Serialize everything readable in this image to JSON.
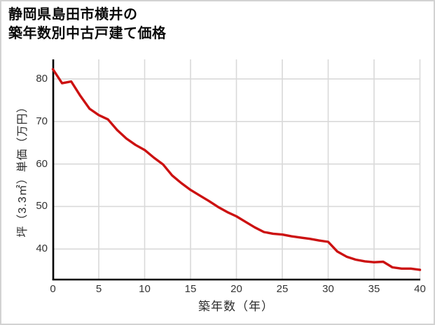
{
  "title": {
    "line1": "静岡県島田市横井の",
    "line2": "築年数別中古戸建て価格"
  },
  "chart_data": {
    "type": "line",
    "title": "静岡県島田市横井の築年数別中古戸建て価格",
    "xlabel": "築年数（年）",
    "ylabel": "坪（3.3㎡）単価（万円）",
    "x": [
      0,
      1,
      2,
      3,
      4,
      5,
      6,
      7,
      8,
      9,
      10,
      11,
      12,
      13,
      14,
      15,
      16,
      17,
      18,
      19,
      20,
      21,
      22,
      23,
      24,
      25,
      26,
      27,
      28,
      29,
      30,
      31,
      32,
      33,
      34,
      35,
      36,
      37,
      38,
      39,
      40
    ],
    "values": [
      82.3,
      79.0,
      79.4,
      76.0,
      73.0,
      71.5,
      70.5,
      68.0,
      66.0,
      64.5,
      63.3,
      61.5,
      59.9,
      57.3,
      55.5,
      53.9,
      52.6,
      51.3,
      49.9,
      48.7,
      47.7,
      46.4,
      45.1,
      44.0,
      43.6,
      43.4,
      43.0,
      42.7,
      42.4,
      42.0,
      41.7,
      39.4,
      38.2,
      37.5,
      37.1,
      36.9,
      37.0,
      35.7,
      35.4,
      35.4,
      35.1
    ],
    "xlim": [
      0,
      40
    ],
    "ylim": [
      33,
      84.5
    ],
    "x_ticks": [
      0,
      5,
      10,
      15,
      20,
      25,
      30,
      35,
      40
    ],
    "y_ticks": [
      40,
      50,
      60,
      70,
      80
    ],
    "grid": true,
    "legend": "none"
  },
  "colors": {
    "line": "#cc1111",
    "grid": "#d9d9d9",
    "axis": "#000000",
    "tick_label": "#333333",
    "frame_border": "#d2d2d2",
    "background": "#ffffff"
  }
}
